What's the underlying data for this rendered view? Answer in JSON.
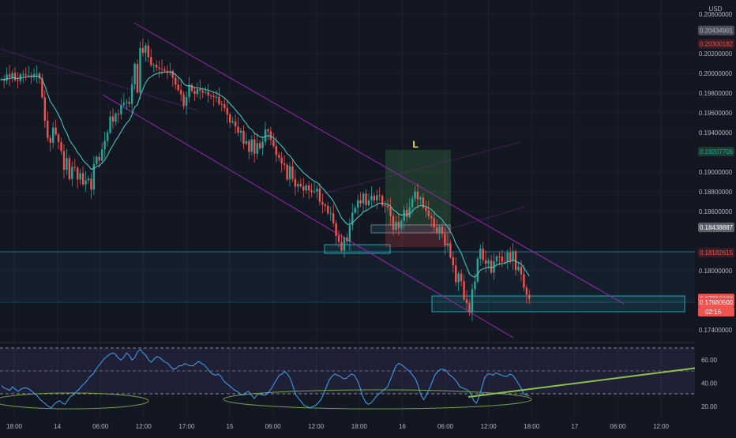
{
  "colors": {
    "background": "#131722",
    "grid": "#1e222d",
    "up_candle": "#26a69a",
    "down_candle": "#ef5350",
    "ema_line": "#4dd0c4",
    "channel": "#9c27b0",
    "zone": "#26c6da",
    "rsi_line": "#42a5f5",
    "rsi_band": "#3a2a4f",
    "trendline": "#8bc34a",
    "axis_text": "#b2b5be"
  },
  "header": {
    "currency": "USD"
  },
  "position_marker": {
    "label": "L"
  },
  "chart_data": [
    {
      "type": "candlestick",
      "panel": "price",
      "ylim": [
        0.1732,
        0.2068
      ],
      "price_ticks": [
        "0.20600000",
        "0.20200000",
        "0.20000000",
        "0.19800000",
        "0.19600000",
        "0.19400000",
        "0.19000000",
        "0.18800000",
        "0.18600000",
        "0.18000000",
        "0.17400000"
      ],
      "price_badges": [
        {
          "text": "0.20434901",
          "value": 0.20434901,
          "color": "#b2b5be",
          "bg": "#4a4e5a"
        },
        {
          "text": "0.20300182",
          "value": 0.20300182,
          "color": "#ef5350",
          "bg": "#3a1c22"
        },
        {
          "text": "0.19207706",
          "value": 0.19207706,
          "color": "#26a69a",
          "bg": "#1b3a30"
        },
        {
          "text": "0.18438887",
          "value": 0.18438887,
          "color": "#ffffff",
          "bg": "#5d606b"
        },
        {
          "text": "0.18182615",
          "value": 0.18182615,
          "color": "#ef5350",
          "bg": "#3a1c22"
        },
        {
          "text": "0.17718000",
          "value": 0.17718,
          "color": "#ffffff",
          "bg": "#ef5350"
        },
        {
          "text": "0.17680500",
          "value": 0.176805,
          "color": "#ffffff",
          "bg": "#ef5350"
        }
      ],
      "countdown": "02:16",
      "candles": {
        "close": [
          0.1994,
          0.19925,
          0.1999,
          0.19962,
          0.20003,
          0.19932,
          0.19923,
          0.1999,
          0.1999,
          0.1998,
          0.1998,
          0.19964,
          0.19994,
          0.19999,
          0.19949,
          0.19758,
          0.19519,
          0.19346,
          0.19297,
          0.19451,
          0.1938,
          0.19305,
          0.19213,
          0.19023,
          0.19141,
          0.18929,
          0.19052,
          0.19043,
          0.18924,
          0.18989,
          0.18875,
          0.18916,
          0.18934,
          0.18822,
          0.19082,
          0.19153,
          0.19117,
          0.19231,
          0.19315,
          0.19401,
          0.19563,
          0.19511,
          0.1959,
          0.19586,
          0.19678,
          0.19701,
          0.19711,
          0.19691,
          0.19889,
          0.20096,
          0.19808,
          0.20258,
          0.20208,
          0.20282,
          0.20165,
          0.20082,
          0.20087,
          0.20059,
          0.20046,
          0.2004,
          0.20026,
          0.20013,
          0.20025,
          0.19957,
          0.19887,
          0.1983,
          0.19788,
          0.19673,
          0.19759,
          0.19884,
          0.19822,
          0.19791,
          0.1984,
          0.19825,
          0.19805,
          0.19811,
          0.19776,
          0.19771,
          0.1976,
          0.19762,
          0.1969,
          0.19687,
          0.19649,
          0.19584,
          0.19502,
          0.19514,
          0.19461,
          0.19399,
          0.19418,
          0.19286,
          0.19315,
          0.19205,
          0.19331,
          0.19186,
          0.19294,
          0.19242,
          0.19307,
          0.19431,
          0.19414,
          0.19325,
          0.19263,
          0.19172,
          0.19147,
          0.19087,
          0.19073,
          0.18925,
          0.19058,
          0.18931,
          0.18852,
          0.18879,
          0.18856,
          0.18814,
          0.18865,
          0.18814,
          0.18798,
          0.18802,
          0.18833,
          0.18698,
          0.18671,
          0.18655,
          0.18581,
          0.18581,
          0.18482,
          0.18353,
          0.18292,
          0.18205,
          0.18337,
          0.18295,
          0.18462,
          0.18587,
          0.18638,
          0.18714,
          0.18682,
          0.18782,
          0.18664,
          0.18715,
          0.18759,
          0.18713,
          0.18766,
          0.18759,
          0.18663,
          0.18657,
          0.18644,
          0.18554,
          0.18414,
          0.18497,
          0.18431,
          0.18507,
          0.18617,
          0.18544,
          0.18642,
          0.18731,
          0.18802,
          0.18724,
          0.1874,
          0.1864,
          0.1861,
          0.18555,
          0.18532,
          0.18438,
          0.18385,
          0.18446,
          0.18373,
          0.18256,
          0.18277,
          0.18136,
          0.18053,
          0.17883,
          0.17971,
          0.17894,
          0.17709,
          0.17669,
          0.17579,
          0.17812,
          0.17891,
          0.18122,
          0.18223,
          0.18108,
          0.1807,
          0.18102,
          0.17981,
          0.18095,
          0.18143,
          0.18141,
          0.1809,
          0.18087,
          0.18183,
          0.18101,
          0.18198,
          0.18007,
          0.18038,
          0.17964,
          0.17827,
          0.17756,
          0.17718
        ],
        "open_is_previous_close": true,
        "x_step_note": "equal-width bars"
      },
      "x_ticks": [
        "18:00",
        "14",
        "06:00",
        "12:00",
        "17:00",
        "15",
        "06:00",
        "12:00",
        "18:00",
        "16",
        "06:00",
        "12:00",
        "18:00",
        "17",
        "06:00",
        "12:00"
      ]
    },
    {
      "type": "line",
      "panel": "rsi",
      "ylim": [
        10,
        75
      ],
      "y_ticks": [
        "60.00",
        "40.00",
        "20.00"
      ],
      "levels": [
        70,
        50,
        30
      ],
      "values": [
        38,
        36,
        35,
        34,
        37,
        35,
        33,
        35,
        36,
        36,
        35,
        33,
        31,
        29,
        26,
        24,
        22,
        20,
        19,
        22,
        24,
        25,
        23,
        22,
        26,
        29,
        30,
        33,
        35,
        38,
        40,
        43,
        46,
        48,
        52,
        55,
        58,
        61,
        63,
        65,
        66,
        65,
        62,
        60,
        62,
        66,
        64,
        60,
        62,
        67,
        69,
        66,
        64,
        60,
        58,
        61,
        63,
        62,
        60,
        58,
        57,
        54,
        52,
        53,
        55,
        55,
        57,
        56,
        55,
        55,
        57,
        59,
        57,
        56,
        53,
        50,
        48,
        47,
        48,
        46,
        42,
        40,
        38,
        36,
        34,
        33,
        31,
        30,
        32,
        33,
        30,
        27,
        30,
        31,
        30,
        30,
        32,
        35,
        39,
        43,
        47,
        48,
        50,
        48,
        44,
        37,
        30,
        27,
        24,
        21,
        20,
        19,
        20,
        21,
        23,
        26,
        31,
        37,
        43,
        46,
        48,
        47,
        46,
        44,
        44,
        46,
        48,
        47,
        43,
        37,
        29,
        24,
        22,
        23,
        26,
        29,
        31,
        33,
        35,
        37,
        43,
        49,
        55,
        57,
        56,
        54,
        52,
        50,
        47,
        44,
        38,
        30,
        26,
        30,
        35,
        41,
        47,
        50,
        52,
        52,
        51,
        48,
        46,
        44,
        41,
        37,
        36,
        35,
        34,
        31,
        25,
        23,
        29,
        37,
        45,
        48,
        48,
        47,
        49,
        48,
        47,
        46,
        46,
        48,
        47,
        44,
        40,
        36,
        31,
        30,
        29
      ]
    }
  ]
}
